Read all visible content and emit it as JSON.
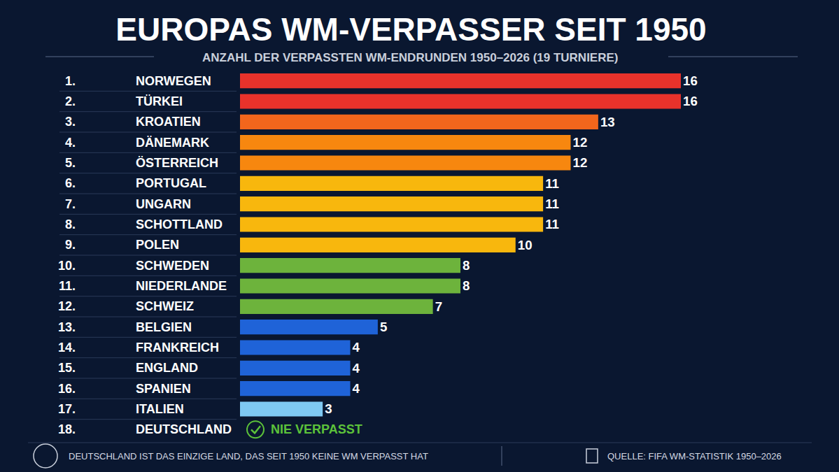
{
  "chart_data": {
    "type": "bar",
    "orientation": "horizontal",
    "title": "EUROPAS WM-VERPASSER SEIT 1950",
    "subtitle": "ANZAHL DER VERPASSTEN WM-ENDRUNDEN 1950–2026 (19 TURNIERE)",
    "rank_labels": [
      "1.",
      "2.",
      "3.",
      "4.",
      "5.",
      "6.",
      "7.",
      "8.",
      "9.",
      "10.",
      "11.",
      "12.",
      "13.",
      "14.",
      "15.",
      "16.",
      "17.",
      "18."
    ],
    "categories": [
      "NORWEGEN",
      "TÜRKEI",
      "KROATIEN",
      "DÄNEMARK",
      "ÖSTERREICH",
      "PORTUGAL",
      "UNGARN",
      "SCHOTTLAND",
      "POLEN",
      "SCHWEDEN",
      "NIEDERLANDE",
      "SCHWEIZ",
      "BELGIEN",
      "FRANKREICH",
      "ENGLAND",
      "SPANIEN",
      "ITALIEN",
      "DEUTSCHLAND"
    ],
    "values": [
      16,
      16,
      13,
      12,
      12,
      11,
      11,
      11,
      10,
      8,
      8,
      7,
      5,
      4,
      4,
      4,
      3,
      0
    ],
    "value_labels": [
      "16",
      "16",
      "13",
      "12",
      "12",
      "11",
      "11",
      "11",
      "10",
      "8",
      "8",
      "7",
      "5",
      "4",
      "4",
      "4",
      "3",
      "NIE VERPASST"
    ],
    "colors": [
      "#e8322b",
      "#e8322b",
      "#f2661c",
      "#f7870f",
      "#f7870f",
      "#f8b70d",
      "#f8b70d",
      "#f8b70d",
      "#f8b70d",
      "#6db33c",
      "#6db33c",
      "#6db33c",
      "#1f63d8",
      "#1f63d8",
      "#1f63d8",
      "#1f63d8",
      "#7fc9f3",
      "#5cc23a"
    ],
    "xlim": [
      0,
      16
    ],
    "data_labels": true,
    "tick_labels": false,
    "grid": false,
    "footnote": "DEUTSCHLAND IST DAS EINZIGE LAND, DAS SEIT 1950 KEINE WM VERPASST HAT",
    "source": "QUELLE: FIFA WM-STATISTIK 1950–2026"
  }
}
